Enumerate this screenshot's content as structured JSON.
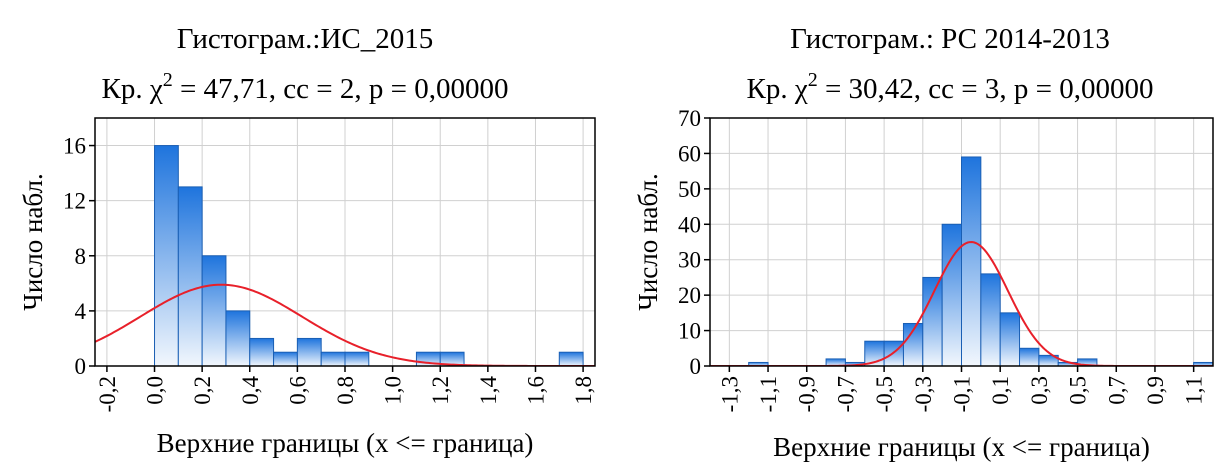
{
  "chart_data": [
    {
      "type": "bar",
      "title": "Гистограм.:ИС_2015",
      "subtitle_prefix": "Кр. χ",
      "subtitle_sup": "2",
      "subtitle_rest": " = 47,71, сс = 2, р = 0,00000",
      "xlabel": "Верхние границы (x <= граница)",
      "ylabel": "Число набл.",
      "xlim": [
        -0.25,
        1.85
      ],
      "ylim": [
        0,
        18
      ],
      "xticks": [
        -0.2,
        0.0,
        0.2,
        0.4,
        0.6,
        0.8,
        1.0,
        1.2,
        1.4,
        1.6,
        1.8
      ],
      "xtick_labels": [
        "-0,2",
        "0,0",
        "0,2",
        "0,4",
        "0,6",
        "0,8",
        "1,0",
        "1,2",
        "1,4",
        "1,6",
        "1,8"
      ],
      "yticks": [
        0,
        4,
        8,
        12,
        16
      ],
      "ytick_labels": [
        "0",
        "4",
        "8",
        "12",
        "16"
      ],
      "bin_width": 0.1,
      "bins": [
        {
          "upper": 0.1,
          "count": 16
        },
        {
          "upper": 0.2,
          "count": 13
        },
        {
          "upper": 0.3,
          "count": 8
        },
        {
          "upper": 0.4,
          "count": 4
        },
        {
          "upper": 0.5,
          "count": 2
        },
        {
          "upper": 0.6,
          "count": 1
        },
        {
          "upper": 0.7,
          "count": 2
        },
        {
          "upper": 0.8,
          "count": 1
        },
        {
          "upper": 0.9,
          "count": 1
        },
        {
          "upper": 1.0,
          "count": 0
        },
        {
          "upper": 1.1,
          "count": 0
        },
        {
          "upper": 1.2,
          "count": 1
        },
        {
          "upper": 1.3,
          "count": 1
        },
        {
          "upper": 1.4,
          "count": 0
        },
        {
          "upper": 1.5,
          "count": 0
        },
        {
          "upper": 1.6,
          "count": 0
        },
        {
          "upper": 1.7,
          "count": 0
        },
        {
          "upper": 1.8,
          "count": 1
        }
      ],
      "normal_curve": {
        "mean": 0.28,
        "sd": 0.34,
        "peak": 5.9,
        "color": "#e8202a"
      },
      "bar_gradient": [
        "#1e74dd",
        "#f2f7fd"
      ],
      "grid": true
    },
    {
      "type": "bar",
      "title": "Гистограм.: РС 2014-2013",
      "subtitle_prefix": "Кр. χ",
      "subtitle_sup": "2",
      "subtitle_rest": " = 30,42, сс = 3, р = 0,00000",
      "xlabel": "Верхние границы (x <= граница)",
      "ylabel": "Число набл.",
      "xlim": [
        -1.4,
        1.2
      ],
      "ylim": [
        0,
        70
      ],
      "xticks": [
        -1.3,
        -1.1,
        -0.9,
        -0.7,
        -0.5,
        -0.3,
        -0.1,
        0.1,
        0.3,
        0.5,
        0.7,
        0.9,
        1.1
      ],
      "xtick_labels": [
        "-1,3",
        "-1,1",
        "-0,9",
        "-0,7",
        "-0,5",
        "-0,3",
        "-0,1",
        "0,1",
        "0,3",
        "0,5",
        "0,7",
        "0,9",
        "1,1"
      ],
      "yticks": [
        0,
        10,
        20,
        30,
        40,
        50,
        60,
        70
      ],
      "ytick_labels": [
        "0",
        "10",
        "20",
        "30",
        "40",
        "50",
        "60",
        "70"
      ],
      "bin_width": 0.1,
      "bins": [
        {
          "upper": -1.1,
          "count": 1
        },
        {
          "upper": -0.7,
          "count": 2
        },
        {
          "upper": -0.6,
          "count": 1
        },
        {
          "upper": -0.5,
          "count": 7
        },
        {
          "upper": -0.4,
          "count": 7
        },
        {
          "upper": -0.3,
          "count": 12
        },
        {
          "upper": -0.2,
          "count": 25
        },
        {
          "upper": -0.1,
          "count": 40
        },
        {
          "upper": 0.0,
          "count": 59
        },
        {
          "upper": 0.1,
          "count": 26
        },
        {
          "upper": 0.2,
          "count": 15
        },
        {
          "upper": 0.3,
          "count": 5
        },
        {
          "upper": 0.4,
          "count": 3
        },
        {
          "upper": 0.5,
          "count": 1
        },
        {
          "upper": 0.6,
          "count": 2
        },
        {
          "upper": 1.2,
          "count": 1
        }
      ],
      "normal_curve": {
        "mean": -0.05,
        "sd": 0.19,
        "peak": 35,
        "color": "#e8202a"
      },
      "bar_gradient": [
        "#1e74dd",
        "#f2f7fd"
      ],
      "grid": true
    }
  ]
}
